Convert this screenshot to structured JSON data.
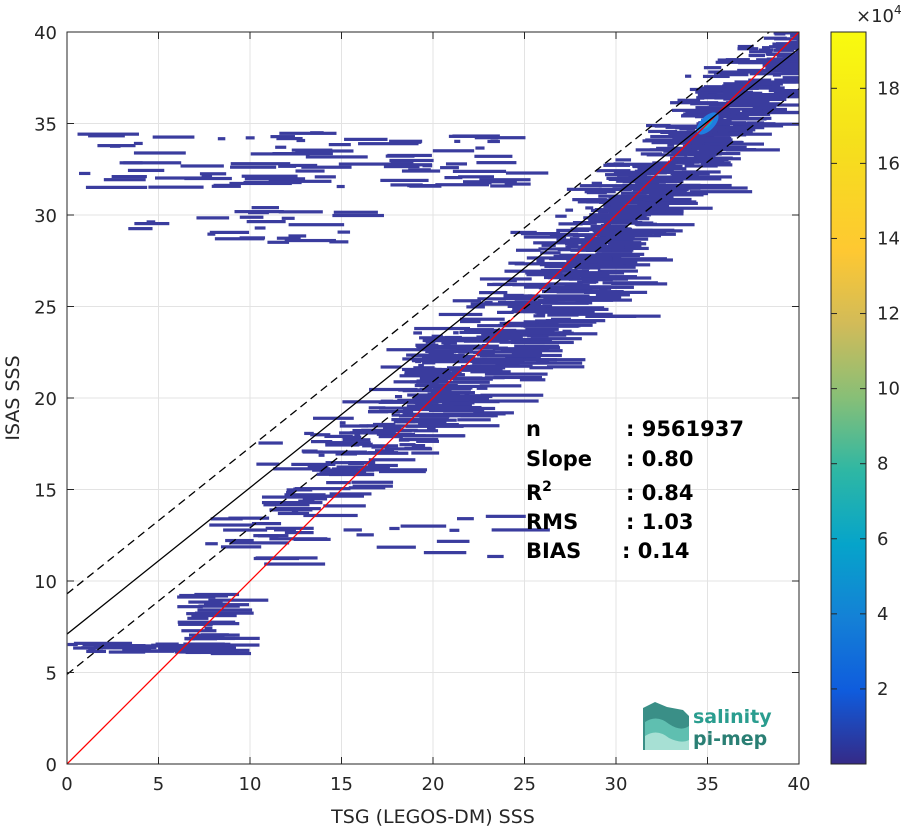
{
  "chart_data": {
    "type": "scatter",
    "subtype": "density-scatter",
    "xlabel": "TSG (LEGOS-DM) SSS",
    "ylabel": "ISAS SSS",
    "xlim": [
      0,
      40
    ],
    "ylim": [
      0,
      40
    ],
    "x_ticks": [
      "0",
      "5",
      "10",
      "15",
      "20",
      "25",
      "30",
      "35",
      "40"
    ],
    "y_ticks": [
      "0",
      "5",
      "10",
      "15",
      "20",
      "25",
      "30",
      "35",
      "40"
    ],
    "grid": true,
    "colorbar": {
      "exponent_label": "×10",
      "exponent_power": "4",
      "range": [
        0,
        19.5
      ],
      "ticks": [
        "2",
        "4",
        "6",
        "8",
        "10",
        "12",
        "14",
        "16",
        "18"
      ],
      "colormap": "parula"
    },
    "lines": {
      "identity": {
        "slope": 1.0,
        "intercept": 0.0,
        "color": "#ff0000"
      },
      "fit": {
        "slope": 0.8,
        "intercept": 7.1,
        "color": "#000000"
      },
      "fit_upper": {
        "slope": 0.8,
        "intercept": 9.3,
        "color": "#000000",
        "dash": true
      },
      "fit_lower": {
        "slope": 0.8,
        "intercept": 4.9,
        "color": "#000000",
        "dash": true
      }
    },
    "stats": [
      {
        "name": "n",
        "value": ": 9561937"
      },
      {
        "name": "Slope",
        "value": ": 0.80"
      },
      {
        "name": "R",
        "sup": "2",
        "value": ": 0.84"
      },
      {
        "name": "RMS",
        "value": ": 1.03"
      },
      {
        "name": "BIAS",
        "value": ": 0.14"
      }
    ],
    "point_color": "#3a3c9e",
    "hotspot_colors": [
      "#1f7de0",
      "#15a5c9"
    ],
    "density_regions": [
      {
        "x": [
          28,
          40
        ],
        "y_center_slope": 0.98,
        "y_center_intercept": 0.9,
        "spread": 2.6,
        "weight": 420
      },
      {
        "x": [
          18,
          30
        ],
        "y_center_slope": 0.9,
        "y_center_intercept": 2.8,
        "spread": 3.5,
        "weight": 380
      },
      {
        "x": [
          10,
          20
        ],
        "y_center_slope": 0.85,
        "y_center_intercept": 4.6,
        "spread": 3.0,
        "weight": 130
      },
      {
        "x": [
          0.5,
          24
        ],
        "y": [
          31.5,
          34.5
        ],
        "weight": 90
      },
      {
        "x": [
          3,
          15
        ],
        "y": [
          28.5,
          30.5
        ],
        "weight": 25
      },
      {
        "x": [
          0,
          7
        ],
        "y": [
          6.1,
          6.6
        ],
        "weight": 30
      },
      {
        "x": [
          6,
          8
        ],
        "y": [
          6.0,
          9.3
        ],
        "weight": 40
      },
      {
        "x": [
          13.5,
          24
        ],
        "y": [
          11.2,
          13.8
        ],
        "weight": 12
      },
      {
        "x": [
          7.5,
          9
        ],
        "y": [
          11.8,
          13.5
        ],
        "weight": 8
      }
    ],
    "hotspot": {
      "x": 35,
      "y": 35,
      "value": 3.5
    }
  },
  "logo": {
    "line1": "salinity",
    "line2": "pi-mep"
  }
}
